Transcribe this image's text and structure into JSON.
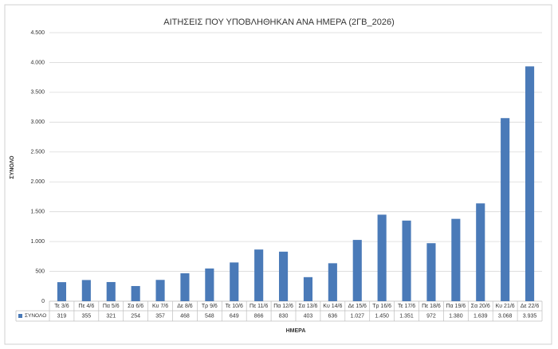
{
  "chart_data": {
    "type": "bar",
    "title": "ΑΙΤΗΣΕΙΣ ΠΟΥ ΥΠΟΒΛΗΘΗΚΑΝ ΑΝΑ ΗΜΕΡΑ (2ΓΒ_2026)",
    "x_label": "ΗΜΕΡΑ",
    "y_label": "ΣΥΝΟΛΟ",
    "categories": [
      "Τε 3/6",
      "Πε 4/6",
      "Πα 5/6",
      "Σα 6/6",
      "Κυ 7/6",
      "Δε 8/6",
      "Τρ 9/6",
      "Τε 10/6",
      "Πε 11/6",
      "Πα 12/6",
      "Σα 13/6",
      "Κυ 14/6",
      "Δε 15/6",
      "Τρ 16/6",
      "Τε 17/6",
      "Πε 18/6",
      "Πα 19/6",
      "Σα 20/6",
      "Κυ 21/6",
      "Δε 22/6"
    ],
    "series": [
      {
        "name": "ΣΥΝΟΛΟ",
        "color": "#4a7ab8",
        "values": [
          319,
          355,
          321,
          254,
          357,
          468,
          548,
          649,
          866,
          830,
          403,
          636,
          1027,
          1450,
          1351,
          972,
          1380,
          1639,
          3068,
          3935
        ],
        "value_labels": [
          "319",
          "355",
          "321",
          "254",
          "357",
          "468",
          "548",
          "649",
          "866",
          "830",
          "403",
          "636",
          "1.027",
          "1.450",
          "1.351",
          "972",
          "1.380",
          "1.639",
          "3.068",
          "3.935"
        ]
      }
    ],
    "ylim": [
      0,
      4500
    ],
    "yticks": [
      0,
      500,
      {
        "value": 1000,
        "label": "1.000"
      },
      {
        "value": 1500,
        "label": "1.500"
      },
      {
        "value": 2000,
        "label": "2.000"
      },
      {
        "value": 2500,
        "label": "2.500"
      },
      {
        "value": 3000,
        "label": "3.000"
      },
      {
        "value": 3500,
        "label": "3.500"
      },
      {
        "value": 4000,
        "label": "4.000"
      },
      {
        "value": 4500,
        "label": "4.500"
      }
    ],
    "grid": true
  }
}
